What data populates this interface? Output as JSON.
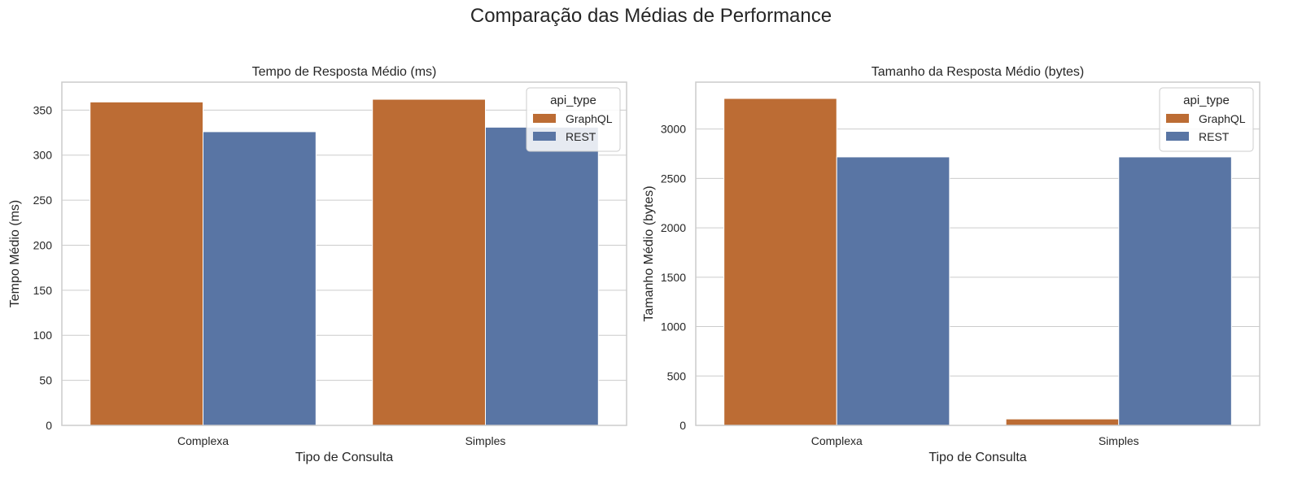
{
  "suptitle": "Comparação das Médias de Performance",
  "colors": {
    "GraphQL": "#bc6c34",
    "REST": "#5975a4",
    "grid": "#cccccc",
    "axes_edge": "#cccccc",
    "background": "#ffffff"
  },
  "chart_data": [
    {
      "type": "bar",
      "title": "Tempo de Resposta Médio (ms)",
      "xlabel": "Tipo de Consulta",
      "ylabel": "Tempo Médio (ms)",
      "categories": [
        "Complexa",
        "Simples"
      ],
      "series": [
        {
          "name": "GraphQL",
          "values": [
            359,
            362
          ]
        },
        {
          "name": "REST",
          "values": [
            326,
            331
          ]
        }
      ],
      "ylim": [
        0,
        381
      ],
      "yticks": [
        0,
        50,
        100,
        150,
        200,
        250,
        300,
        350
      ],
      "grid": "horizontal",
      "legend": {
        "title": "api_type",
        "placement": "top-right"
      }
    },
    {
      "type": "bar",
      "title": "Tamanho da Resposta Médio (bytes)",
      "xlabel": "Tipo de Consulta",
      "ylabel": "Tamanho Médio (bytes)",
      "categories": [
        "Complexa",
        "Simples"
      ],
      "series": [
        {
          "name": "GraphQL",
          "values": [
            3310,
            65
          ]
        },
        {
          "name": "REST",
          "values": [
            2718,
            2718
          ]
        }
      ],
      "ylim": [
        0,
        3475
      ],
      "yticks": [
        0,
        500,
        1000,
        1500,
        2000,
        2500,
        3000
      ],
      "grid": "horizontal",
      "legend": {
        "title": "api_type",
        "placement": "top-right"
      }
    }
  ]
}
